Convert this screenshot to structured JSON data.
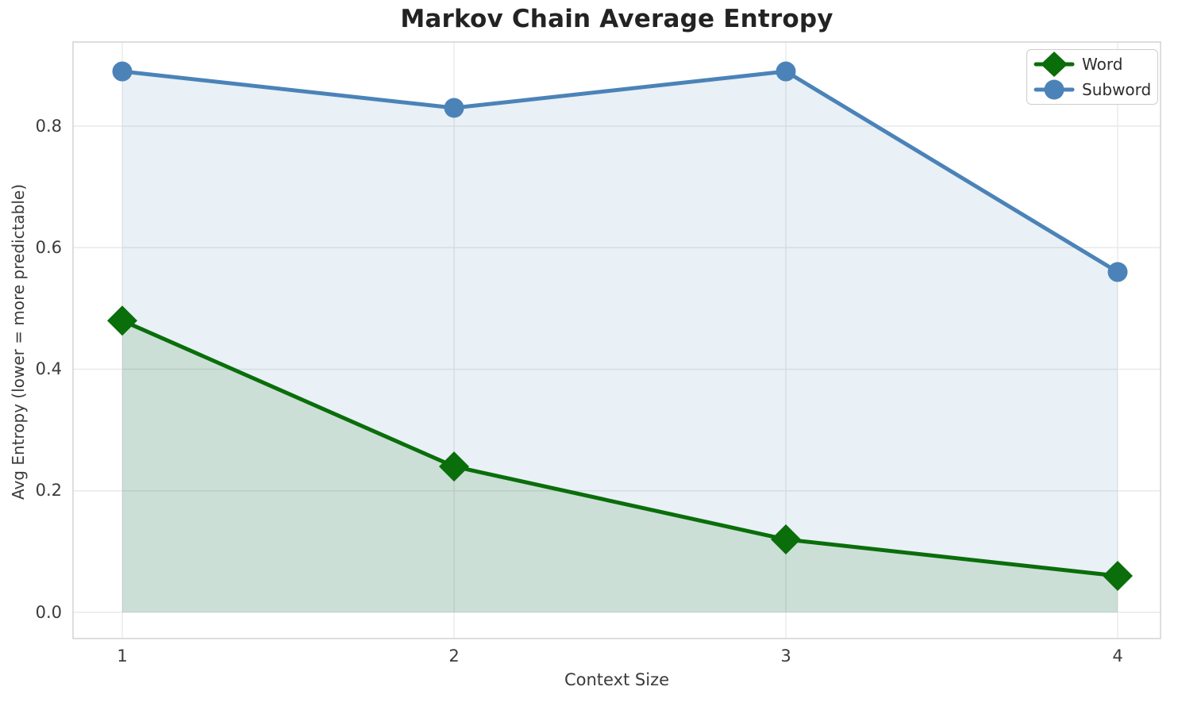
{
  "chart_data": {
    "type": "line",
    "title": "Markov Chain Average Entropy",
    "xlabel": "Context Size",
    "ylabel": "Avg Entropy (lower = more predictable)",
    "x": [
      1,
      2,
      3,
      4
    ],
    "series": [
      {
        "name": "Word",
        "values": [
          0.48,
          0.24,
          0.12,
          0.06
        ],
        "color": "#0a6e0a",
        "marker": "diamond",
        "fill_alpha": 0.13
      },
      {
        "name": "Subword",
        "values": [
          0.89,
          0.83,
          0.89,
          0.56
        ],
        "color": "#4b83b8",
        "marker": "circle",
        "fill_alpha": 0.12
      }
    ],
    "xticks": [
      "1",
      "2",
      "3",
      "4"
    ],
    "yticks": [
      "0.0",
      "0.2",
      "0.4",
      "0.6",
      "0.8"
    ],
    "xlim": [
      0.85,
      4.13
    ],
    "ylim": [
      0,
      0.94
    ],
    "grid": true,
    "area_fill": true,
    "baseline": 0,
    "legend_position": "upper right",
    "colors": {
      "background": "#ffffff",
      "grid": "#e9e9e9",
      "spine": "#d5d5d5",
      "tick_text": "#3b3b3b",
      "title_text": "#232323"
    }
  }
}
